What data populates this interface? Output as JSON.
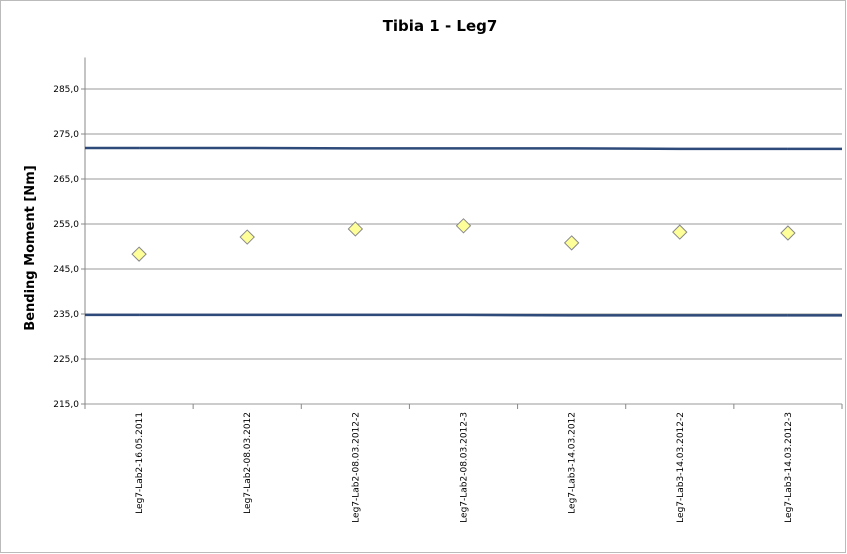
{
  "chart_data": {
    "type": "scatter",
    "title": "Tibia 1 - Leg7",
    "y_label": "Bending Moment [Nm]",
    "categories": [
      "Leg7-Lab2-16.05.2011",
      "Leg7-Lab2-08.03.2012",
      "Leg7-Lab2-08.03.2012-2",
      "Leg7-Lab2-08.03.2012-3",
      "Leg7-Lab3-14.03.2012",
      "Leg7-Lab3-14.03.2012-2",
      "Leg7-Lab3-14.03.2012-3"
    ],
    "series": [
      {
        "color": "#ffff99",
        "marker": "diamond",
        "values": [
          248.3,
          252.1,
          253.9,
          254.6,
          250.8,
          253.2,
          253.0
        ]
      },
      {
        "color": "#2e4a7a",
        "marker": "line",
        "values": [
          271.9,
          271.9,
          271.8,
          271.8,
          271.8,
          271.7,
          271.7
        ]
      },
      {
        "color": "#2e4a7a",
        "marker": "line",
        "values": [
          234.8,
          234.8,
          234.8,
          234.8,
          234.7,
          234.7,
          234.7
        ]
      }
    ],
    "ylim": [
      215,
      292
    ],
    "yticks": [
      {
        "value": 215,
        "label": "215,0"
      },
      {
        "value": 225,
        "label": "225,0"
      },
      {
        "value": 235,
        "label": "235,0"
      },
      {
        "value": 245,
        "label": "245,0"
      },
      {
        "value": 255,
        "label": "255,0"
      },
      {
        "value": 265,
        "label": "265,0"
      },
      {
        "value": 275,
        "label": "275,0"
      },
      {
        "value": 285,
        "label": "285,0"
      }
    ],
    "grid": true
  }
}
